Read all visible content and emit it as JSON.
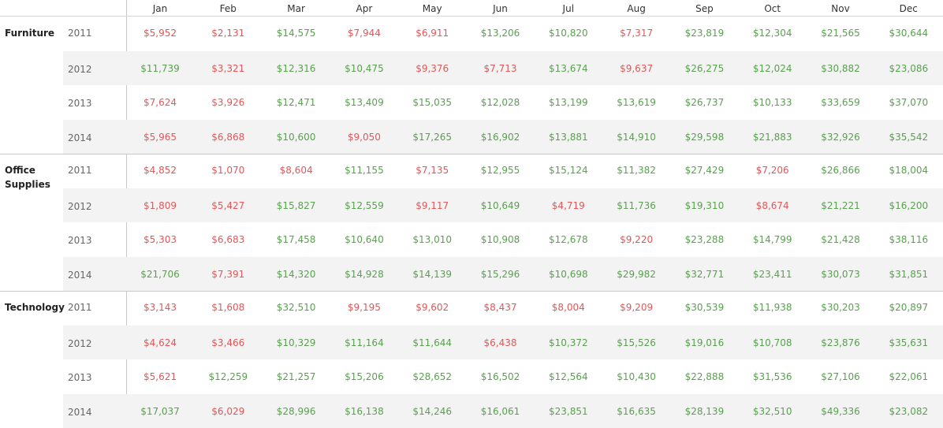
{
  "colors": {
    "negative": "#e15759",
    "positive": "#59a14f",
    "header_text": "#333333",
    "year_text": "#666666",
    "band": "#f3f3f3"
  },
  "chart_data": {
    "type": "table",
    "threshold": 10000,
    "columns": [
      "Jan",
      "Feb",
      "Mar",
      "Apr",
      "May",
      "Jun",
      "Jul",
      "Aug",
      "Sep",
      "Oct",
      "Nov",
      "Dec"
    ],
    "categories": [
      {
        "name": "Furniture",
        "rows": [
          {
            "year": "2011",
            "values": [
              "$5,952",
              "$2,131",
              "$14,575",
              "$7,944",
              "$6,911",
              "$13,206",
              "$10,820",
              "$7,317",
              "$23,819",
              "$12,304",
              "$21,565",
              "$30,644"
            ]
          },
          {
            "year": "2012",
            "values": [
              "$11,739",
              "$3,321",
              "$12,316",
              "$10,475",
              "$9,376",
              "$7,713",
              "$13,674",
              "$9,637",
              "$26,275",
              "$12,024",
              "$30,882",
              "$23,086"
            ]
          },
          {
            "year": "2013",
            "values": [
              "$7,624",
              "$3,926",
              "$12,471",
              "$13,409",
              "$15,035",
              "$12,028",
              "$13,199",
              "$13,619",
              "$26,737",
              "$10,133",
              "$33,659",
              "$37,070"
            ]
          },
          {
            "year": "2014",
            "values": [
              "$5,965",
              "$6,868",
              "$10,600",
              "$9,050",
              "$17,265",
              "$16,902",
              "$13,881",
              "$14,910",
              "$29,598",
              "$21,883",
              "$32,926",
              "$35,542"
            ]
          }
        ]
      },
      {
        "name": "Office Supplies",
        "rows": [
          {
            "year": "2011",
            "values": [
              "$4,852",
              "$1,070",
              "$8,604",
              "$11,155",
              "$7,135",
              "$12,955",
              "$15,124",
              "$11,382",
              "$27,429",
              "$7,206",
              "$26,866",
              "$18,004"
            ]
          },
          {
            "year": "2012",
            "values": [
              "$1,809",
              "$5,427",
              "$15,827",
              "$12,559",
              "$9,117",
              "$10,649",
              "$4,719",
              "$11,736",
              "$19,310",
              "$8,674",
              "$21,221",
              "$16,200"
            ]
          },
          {
            "year": "2013",
            "values": [
              "$5,303",
              "$6,683",
              "$17,458",
              "$10,640",
              "$13,010",
              "$10,908",
              "$12,678",
              "$9,220",
              "$23,288",
              "$14,799",
              "$21,428",
              "$38,116"
            ]
          },
          {
            "year": "2014",
            "values": [
              "$21,706",
              "$7,391",
              "$14,320",
              "$14,928",
              "$14,139",
              "$15,296",
              "$10,698",
              "$29,982",
              "$32,771",
              "$23,411",
              "$30,073",
              "$31,851"
            ]
          }
        ]
      },
      {
        "name": "Technology",
        "rows": [
          {
            "year": "2011",
            "values": [
              "$3,143",
              "$1,608",
              "$32,510",
              "$9,195",
              "$9,602",
              "$8,437",
              "$8,004",
              "$9,209",
              "$30,539",
              "$11,938",
              "$30,203",
              "$20,897"
            ]
          },
          {
            "year": "2012",
            "values": [
              "$4,624",
              "$3,466",
              "$10,329",
              "$11,164",
              "$11,644",
              "$6,438",
              "$10,372",
              "$15,526",
              "$19,016",
              "$10,708",
              "$23,876",
              "$35,631"
            ]
          },
          {
            "year": "2013",
            "values": [
              "$5,621",
              "$12,259",
              "$21,257",
              "$15,206",
              "$28,652",
              "$16,502",
              "$12,564",
              "$10,430",
              "$22,888",
              "$31,536",
              "$27,106",
              "$22,061"
            ]
          },
          {
            "year": "2014",
            "values": [
              "$17,037",
              "$6,029",
              "$28,996",
              "$16,138",
              "$14,246",
              "$16,061",
              "$23,851",
              "$16,635",
              "$28,139",
              "$32,510",
              "$49,336",
              "$23,082"
            ]
          }
        ]
      }
    ]
  }
}
